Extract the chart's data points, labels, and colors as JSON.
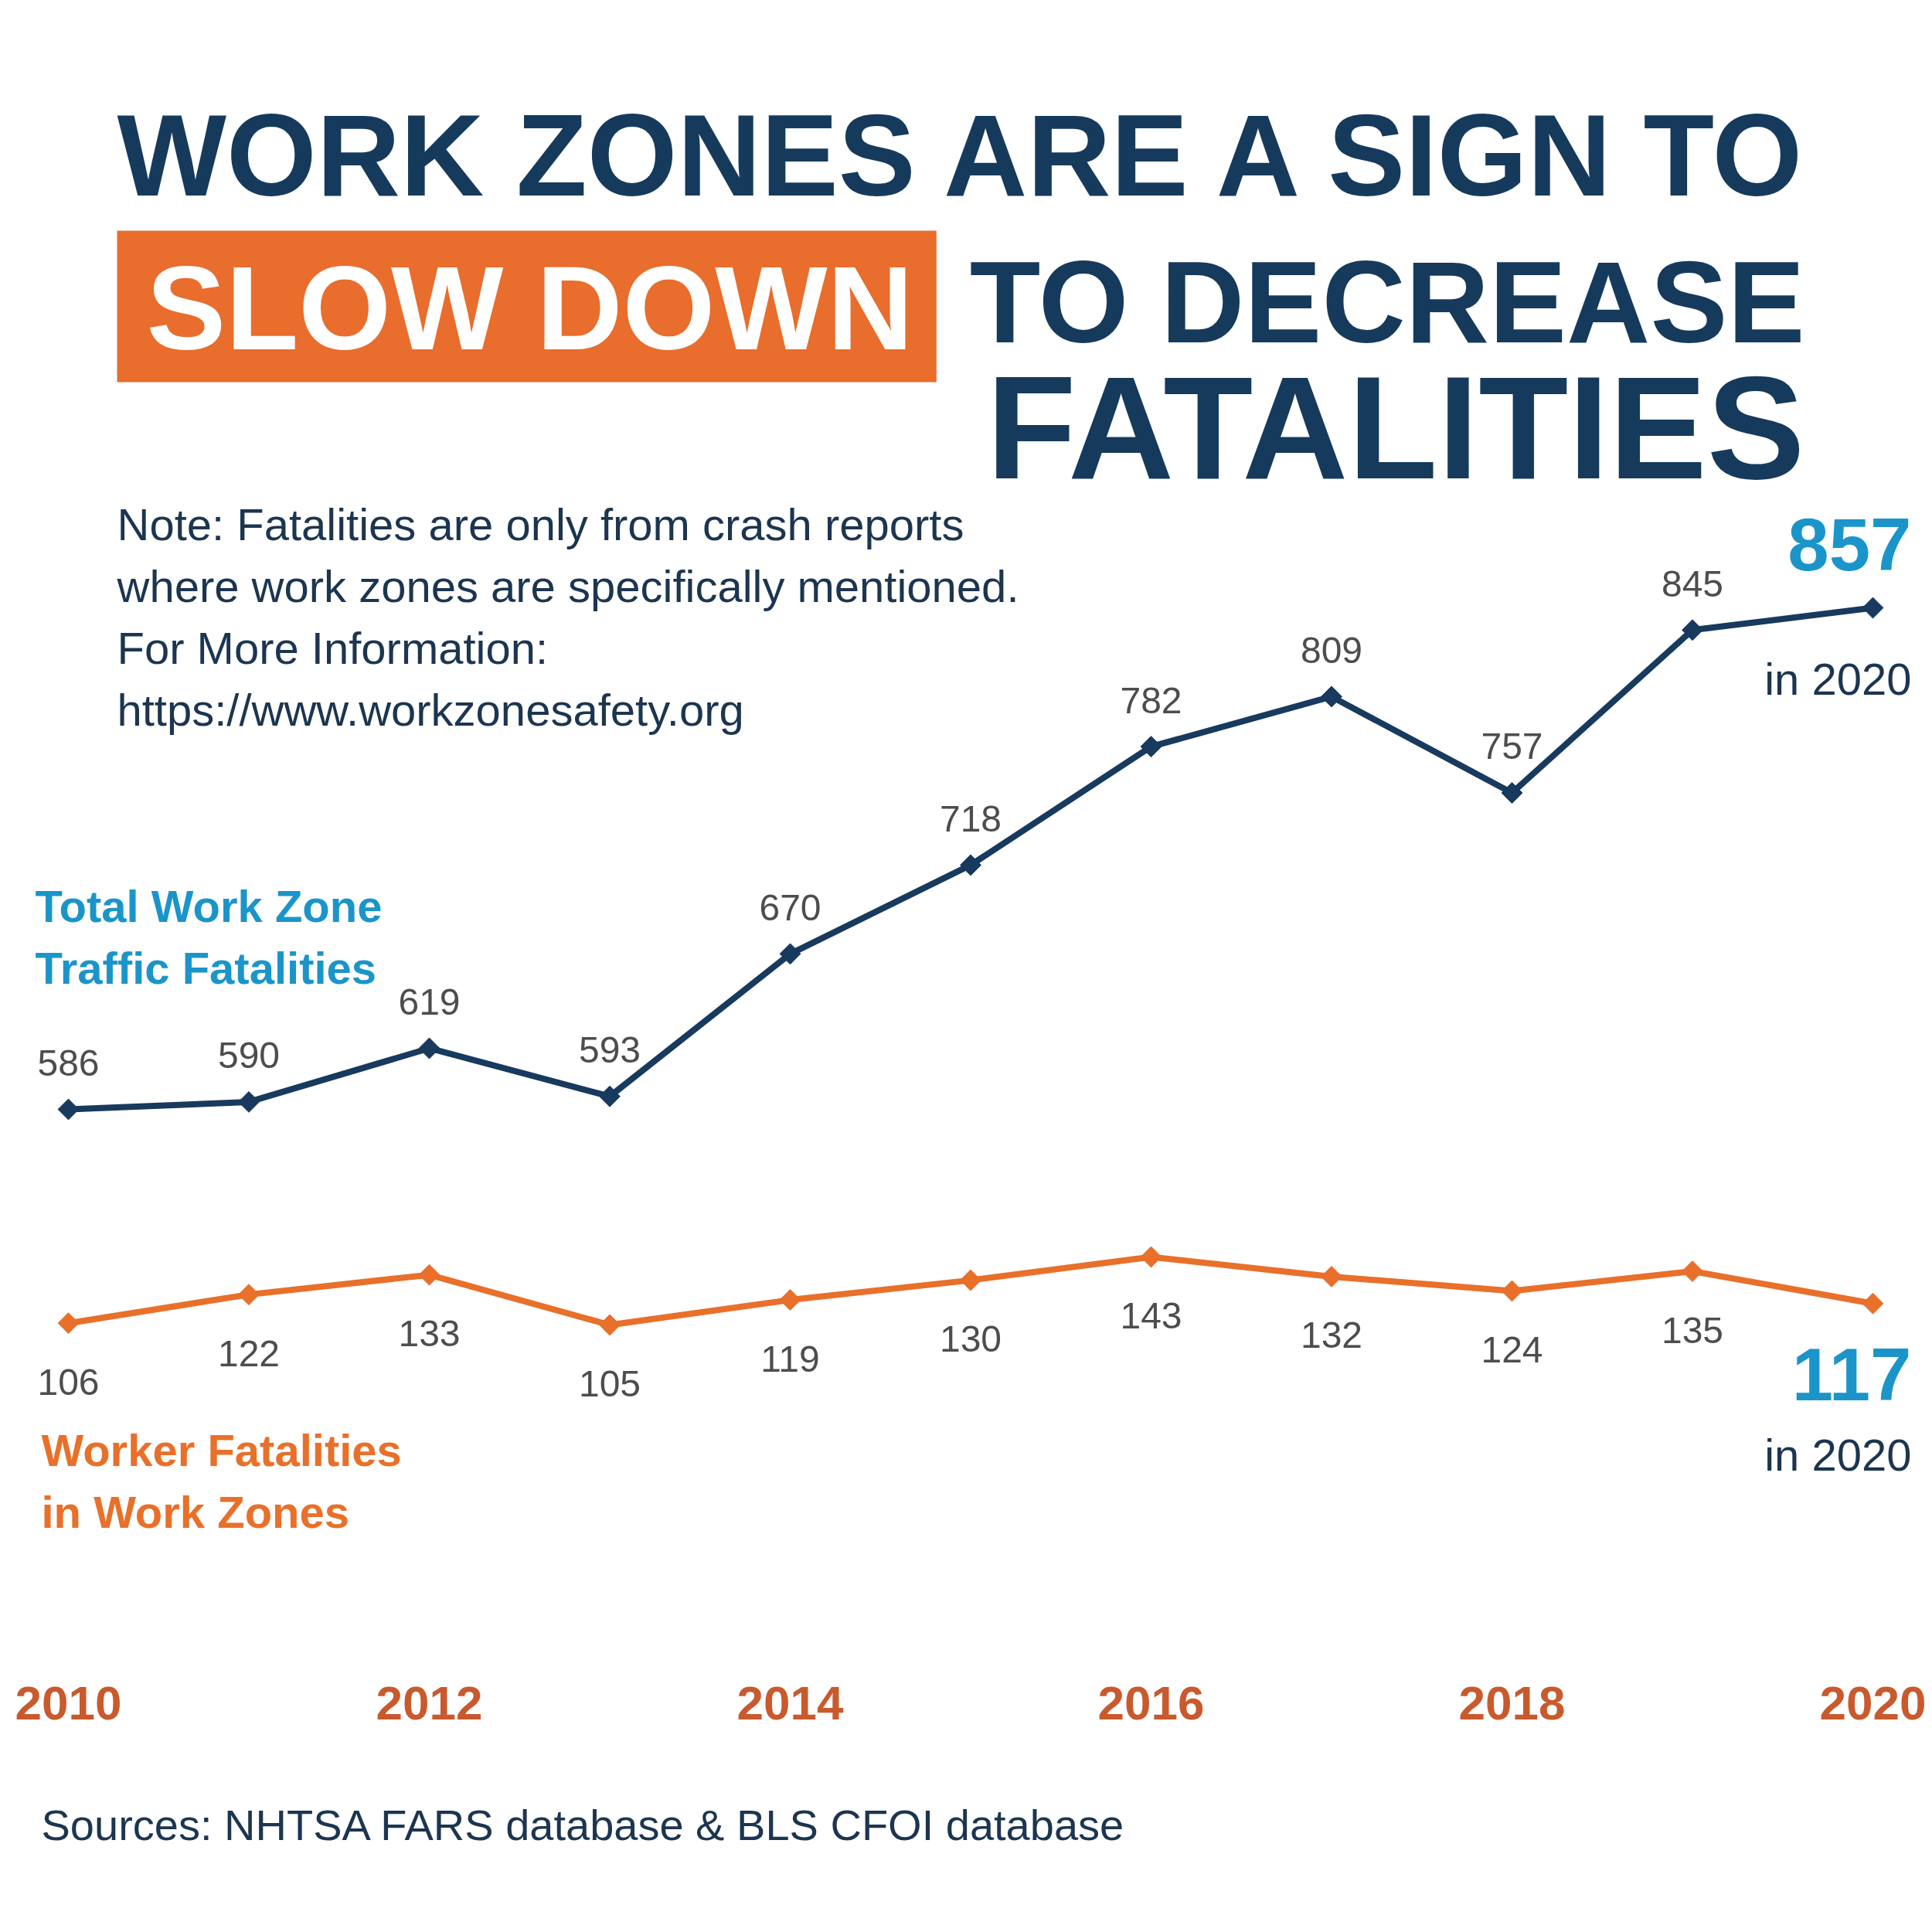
{
  "chart_data": [
    {
      "type": "line",
      "title": "WORK ZONES ARE A SIGN TO SLOW DOWN TO DECREASE FATALITIES",
      "categories": [
        "2010",
        null,
        "2012",
        null,
        "2014",
        null,
        "2016",
        null,
        "2018",
        null,
        "2020"
      ],
      "tick_labels": false,
      "series": [
        {
          "name": "Total Work Zone\nTraffic Fatalities",
          "color": "#173a5e",
          "values": [
            586,
            590,
            619,
            593,
            670,
            718,
            782,
            809,
            757,
            845,
            857
          ]
        }
      ],
      "data_labels": true,
      "marker": "diamond",
      "line_style": "solid",
      "annotations": [
        "Note: Fatalities are only from crash reports\nwhere work zones are specifically mentioned.\nFor More Information:\nhttps://www.workzonesafety.org",
        {
          "text": "in 2020",
          "x": "2020",
          "y": 857
        }
      ]
    },
    {
      "type": "line",
      "categories": [
        "2010",
        null,
        "2012",
        null,
        "2014",
        null,
        "2016",
        null,
        "2018",
        null,
        "2020"
      ],
      "tick_labels": "x",
      "series": [
        {
          "name": "Worker Fatalities\nin Work Zones",
          "color": "#e8702a",
          "values": [
            106,
            122,
            133,
            105,
            119,
            130,
            143,
            132,
            124,
            135,
            117
          ]
        }
      ],
      "data_labels": true,
      "marker": "diamond",
      "line_style": "solid",
      "annotations": [
        "in 2020",
        "Sources: NHTSA FARS database & BLS CFOI database"
      ]
    }
  ]
}
